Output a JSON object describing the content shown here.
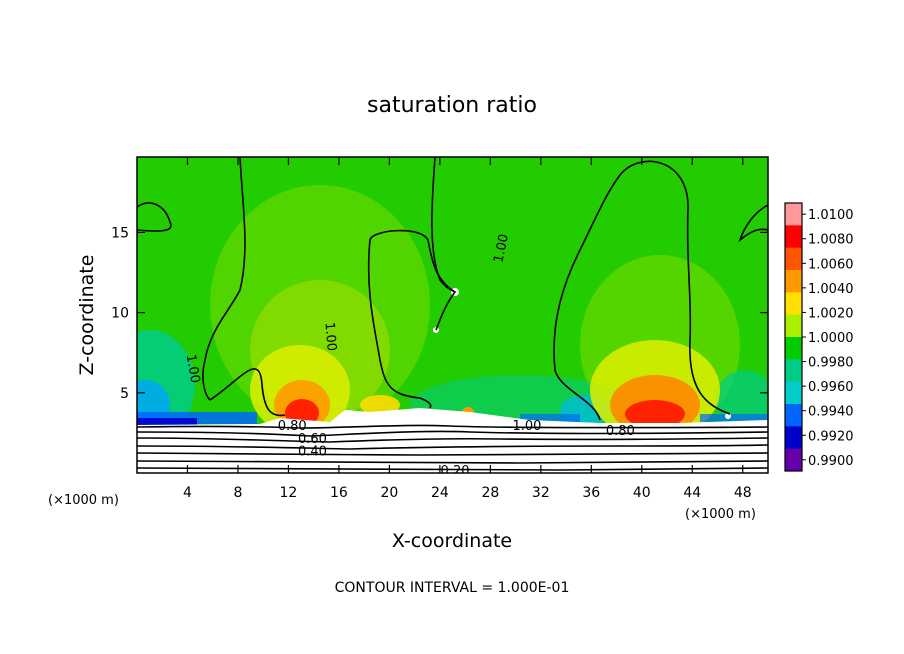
{
  "chart_data": {
    "type": "heatmap",
    "title": "saturation ratio",
    "xlabel": "X-coordinate",
    "ylabel": "Z-coordinate",
    "x_unit_label": "(×1000 m)",
    "x_ticks": [
      4,
      8,
      12,
      16,
      20,
      24,
      28,
      32,
      36,
      40,
      44,
      48
    ],
    "y_ticks": [
      5,
      10,
      15
    ],
    "xlim": [
      0,
      50
    ],
    "ylim": [
      0,
      19.7
    ],
    "footer": "CONTOUR INTERVAL = 1.000E-01",
    "colorbar": {
      "levels": [
        "1.0100",
        "1.0080",
        "1.0060",
        "1.0040",
        "1.0020",
        "1.0000",
        "0.9980",
        "0.9960",
        "0.9940",
        "0.9920",
        "0.9900"
      ],
      "colors": [
        "#ff9999",
        "#ff0000",
        "#ff5500",
        "#ff9900",
        "#ffe000",
        "#aaee00",
        "#00cc00",
        "#00cc88",
        "#00cccc",
        "#0066ff",
        "#0000cc",
        "#6600aa"
      ]
    },
    "contour_labels": [
      {
        "text": "1.00",
        "x": 4.4,
        "y": 6.5,
        "rot": 80
      },
      {
        "text": "1.00",
        "x": 15.3,
        "y": 8.5,
        "rot": 85
      },
      {
        "text": "1.00",
        "x": 28.9,
        "y": 14.0,
        "rot": -78
      },
      {
        "text": "1.00",
        "x": 30.9,
        "y": 2.9,
        "rot": 0
      },
      {
        "text": "0.80",
        "x": 38.3,
        "y": 2.6,
        "rot": 0
      },
      {
        "text": "0.80",
        "x": 12.3,
        "y": 2.9,
        "rot": 0
      },
      {
        "text": "0.60",
        "x": 13.9,
        "y": 2.1,
        "rot": 0
      },
      {
        "text": "0.40",
        "x": 13.9,
        "y": 1.3,
        "rot": 0
      },
      {
        "text": "0.20",
        "x": 25.2,
        "y": 0.1,
        "rot": 0
      }
    ]
  }
}
